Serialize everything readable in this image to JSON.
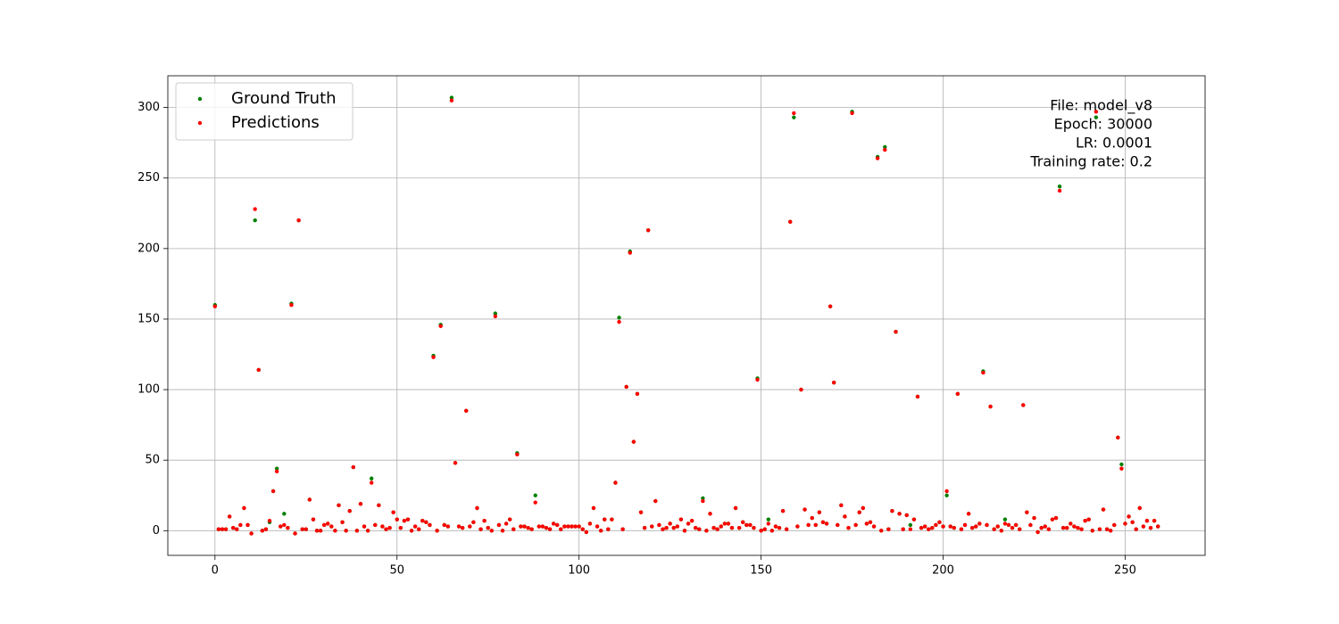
{
  "chart_data": {
    "type": "scatter",
    "x": [
      0,
      1,
      2,
      3,
      4,
      5,
      6,
      7,
      8,
      9,
      10,
      11,
      12,
      13,
      14,
      15,
      16,
      17,
      18,
      19,
      20,
      21,
      22,
      23,
      24,
      25,
      26,
      27,
      28,
      29,
      30,
      31,
      32,
      33,
      34,
      35,
      36,
      37,
      38,
      39,
      40,
      41,
      42,
      43,
      44,
      45,
      46,
      47,
      48,
      49,
      50,
      51,
      52,
      53,
      54,
      55,
      56,
      57,
      58,
      59,
      60,
      61,
      62,
      63,
      64,
      65,
      66,
      67,
      68,
      69,
      70,
      71,
      72,
      73,
      74,
      75,
      76,
      77,
      78,
      79,
      80,
      81,
      82,
      83,
      84,
      85,
      86,
      87,
      88,
      89,
      90,
      91,
      92,
      93,
      94,
      95,
      96,
      97,
      98,
      99,
      100,
      101,
      102,
      103,
      104,
      105,
      106,
      107,
      108,
      109,
      110,
      111,
      112,
      113,
      114,
      115,
      116,
      117,
      118,
      119,
      120,
      121,
      122,
      123,
      124,
      125,
      126,
      127,
      128,
      129,
      130,
      131,
      132,
      133,
      134,
      135,
      136,
      137,
      138,
      139,
      140,
      141,
      142,
      143,
      144,
      145,
      146,
      147,
      148,
      149,
      150,
      151,
      152,
      153,
      154,
      155,
      156,
      157,
      158,
      159,
      160,
      161,
      162,
      163,
      164,
      165,
      166,
      167,
      168,
      169,
      170,
      171,
      172,
      173,
      174,
      175,
      176,
      177,
      178,
      179,
      180,
      181,
      182,
      183,
      184,
      185,
      186,
      187,
      188,
      189,
      190,
      191,
      192,
      193,
      194,
      195,
      196,
      197,
      198,
      199,
      200,
      201,
      202,
      203,
      204,
      205,
      206,
      207,
      208,
      209,
      210,
      211,
      212,
      213,
      214,
      215,
      216,
      217,
      218,
      219,
      220,
      221,
      222,
      223,
      224,
      225,
      226,
      227,
      228,
      229,
      230,
      231,
      232,
      233,
      234,
      235,
      236,
      237,
      238,
      239,
      240,
      241,
      242,
      243,
      244,
      245,
      246,
      247,
      248,
      249,
      250,
      251,
      252,
      253,
      254,
      255,
      256,
      257,
      258,
      259
    ],
    "series": [
      {
        "name": "Ground Truth",
        "color": "green",
        "values": [
          160,
          1,
          1,
          1,
          10,
          2,
          1,
          4,
          16,
          4,
          -2,
          220,
          114,
          0,
          1,
          6,
          28,
          44,
          3,
          12,
          2,
          161,
          -2,
          220,
          1,
          1,
          22,
          8,
          0,
          0,
          4,
          5,
          3,
          0,
          18,
          6,
          0,
          14,
          45,
          0,
          19,
          3,
          0,
          37,
          4,
          18,
          3,
          1,
          2,
          13,
          8,
          2,
          7,
          8,
          0,
          3,
          1,
          7,
          6,
          4,
          124,
          0,
          146,
          4,
          3,
          307,
          48,
          3,
          2,
          85,
          3,
          6,
          16,
          1,
          7,
          2,
          0,
          154,
          4,
          0,
          5,
          8,
          1,
          55,
          3,
          3,
          2,
          1,
          25,
          3,
          3,
          2,
          1,
          5,
          4,
          1,
          3,
          3,
          3,
          3,
          3,
          1,
          -1,
          5,
          16,
          3,
          0,
          8,
          1,
          8,
          34,
          151,
          1,
          102,
          198,
          63,
          97,
          13,
          2,
          213,
          3,
          21,
          4,
          1,
          2,
          5,
          2,
          3,
          8,
          0,
          5,
          7,
          2,
          1,
          23,
          0,
          12,
          2,
          1,
          3,
          5,
          5,
          2,
          16,
          2,
          6,
          4,
          4,
          2,
          108,
          0,
          1,
          8,
          0,
          3,
          2,
          14,
          1,
          219,
          293,
          3,
          100,
          15,
          4,
          9,
          4,
          13,
          6,
          5,
          159,
          105,
          4,
          18,
          10,
          2,
          297,
          4,
          13,
          16,
          5,
          6,
          3,
          265,
          0,
          272,
          1,
          14,
          141,
          12,
          1,
          11,
          4,
          8,
          95,
          2,
          3,
          1,
          2,
          4,
          6,
          3,
          25,
          3,
          2,
          97,
          1,
          4,
          12,
          2,
          3,
          5,
          113,
          4,
          88,
          1,
          3,
          0,
          8,
          4,
          2,
          4,
          1,
          89,
          13,
          4,
          9,
          -1,
          2,
          3,
          1,
          8,
          9,
          244,
          2,
          2,
          5,
          3,
          2,
          1,
          7,
          8,
          0,
          293,
          1,
          15,
          1,
          0,
          4,
          66,
          47,
          5,
          10,
          6,
          1,
          16,
          3,
          7,
          2,
          7,
          3
        ]
      },
      {
        "name": "Predictions",
        "color": "red",
        "values": [
          159,
          1,
          1,
          1,
          10,
          2,
          1,
          4,
          16,
          4,
          -2,
          228,
          114,
          0,
          1,
          7,
          28,
          42,
          3,
          4,
          2,
          160,
          -2,
          220,
          1,
          1,
          22,
          8,
          0,
          0,
          4,
          5,
          3,
          0,
          18,
          6,
          0,
          14,
          45,
          0,
          19,
          3,
          0,
          34,
          4,
          18,
          3,
          1,
          2,
          13,
          8,
          2,
          7,
          8,
          0,
          3,
          1,
          7,
          6,
          4,
          123,
          0,
          145,
          4,
          3,
          305,
          48,
          3,
          2,
          85,
          3,
          6,
          16,
          1,
          7,
          2,
          0,
          152,
          4,
          0,
          5,
          8,
          1,
          54,
          3,
          3,
          2,
          1,
          20,
          3,
          3,
          2,
          1,
          5,
          4,
          1,
          3,
          3,
          3,
          3,
          3,
          1,
          -1,
          5,
          16,
          3,
          0,
          8,
          1,
          8,
          34,
          148,
          1,
          102,
          197,
          63,
          97,
          13,
          2,
          213,
          3,
          21,
          4,
          1,
          2,
          5,
          2,
          3,
          8,
          0,
          5,
          7,
          2,
          1,
          21,
          0,
          12,
          2,
          1,
          3,
          5,
          5,
          2,
          16,
          2,
          6,
          4,
          4,
          2,
          107,
          0,
          1,
          5,
          0,
          3,
          2,
          14,
          1,
          219,
          296,
          3,
          100,
          15,
          4,
          9,
          4,
          13,
          6,
          5,
          159,
          105,
          4,
          18,
          10,
          2,
          296,
          4,
          13,
          16,
          5,
          6,
          3,
          264,
          0,
          270,
          1,
          14,
          141,
          12,
          1,
          11,
          1,
          8,
          95,
          2,
          3,
          1,
          2,
          4,
          6,
          3,
          28,
          3,
          2,
          97,
          1,
          4,
          12,
          2,
          3,
          5,
          112,
          4,
          88,
          1,
          3,
          0,
          5,
          4,
          2,
          4,
          1,
          89,
          13,
          4,
          9,
          -1,
          2,
          3,
          1,
          8,
          9,
          241,
          2,
          2,
          5,
          3,
          2,
          1,
          7,
          8,
          0,
          297,
          1,
          15,
          1,
          0,
          4,
          66,
          44,
          5,
          10,
          6,
          1,
          16,
          3,
          7,
          2,
          7,
          3
        ]
      }
    ],
    "annotations": [
      "File: model_v8",
      "Epoch: 30000",
      "LR: 0.0001",
      "Training rate: 0.2"
    ],
    "xlim": [
      -12.95,
      271.95
    ],
    "xticks": [
      0,
      50,
      100,
      150,
      200,
      250
    ],
    "ylim": [
      -17.5,
      322.5
    ],
    "yticks": [
      0,
      50,
      100,
      150,
      200,
      250,
      300
    ],
    "grid": true,
    "legend": "upper-left"
  }
}
